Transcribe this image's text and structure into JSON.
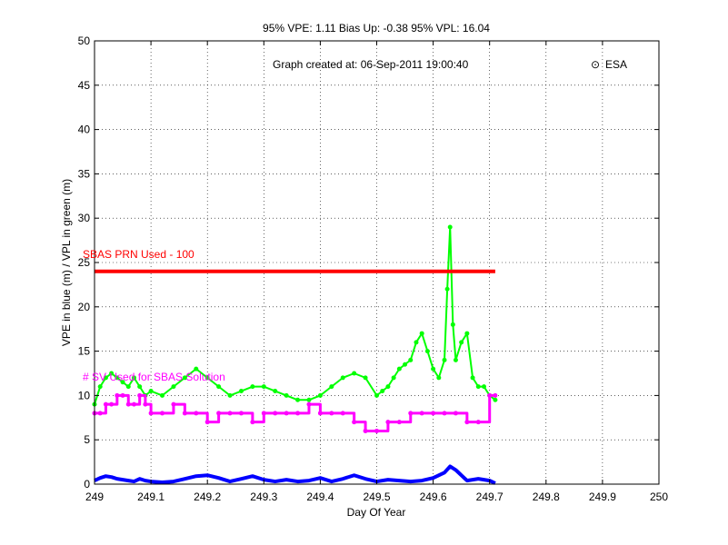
{
  "header": {
    "title": "95% VPE: 1.11  Bias Up: -0.38  95% VPL: 16.04",
    "created": "Graph created at: 06-Sep-2011 19:00:40",
    "credit": "ESA",
    "credit_symbol": "⊙"
  },
  "chart_data": {
    "type": "line",
    "xlabel": "Day Of Year",
    "ylabel": "VPE in blue (m) / VPL in green (m)",
    "xlim": [
      249,
      250
    ],
    "ylim": [
      0,
      50
    ],
    "grid": true,
    "xticks": [
      249,
      249.1,
      249.2,
      249.3,
      249.4,
      249.5,
      249.6,
      249.7,
      249.8,
      249.9,
      250
    ],
    "xtick_labels": [
      "249",
      "249.1",
      "249.2",
      "249.3",
      "249.4",
      "249.5",
      "249.6",
      "249.7",
      "249.8",
      "249.9",
      "250"
    ],
    "yticks": [
      0,
      5,
      10,
      15,
      20,
      25,
      30,
      35,
      40,
      45,
      50
    ],
    "ytick_labels": [
      "0",
      "5",
      "10",
      "15",
      "20",
      "25",
      "30",
      "35",
      "40",
      "45",
      "50"
    ],
    "annotations": [
      {
        "text": "SBAS PRN Used - 100",
        "x": 249.0,
        "y": 25.5,
        "color": "#ff0000"
      },
      {
        "text": "# SV Used for SBAS Solution",
        "x": 249.0,
        "y": 11.7,
        "color": "#ff00ff"
      }
    ],
    "series": [
      {
        "color": "#ff0000",
        "style": "thick-line",
        "x": [
          249.0,
          249.71
        ],
        "y": [
          24,
          24
        ]
      },
      {
        "color": "#00ff00",
        "style": "line-dots",
        "x": [
          249.0,
          249.01,
          249.02,
          249.03,
          249.04,
          249.05,
          249.06,
          249.07,
          249.08,
          249.09,
          249.1,
          249.12,
          249.14,
          249.16,
          249.18,
          249.2,
          249.22,
          249.24,
          249.26,
          249.28,
          249.3,
          249.32,
          249.34,
          249.36,
          249.38,
          249.4,
          249.42,
          249.44,
          249.46,
          249.48,
          249.5,
          249.51,
          249.52,
          249.53,
          249.54,
          249.55,
          249.56,
          249.57,
          249.58,
          249.59,
          249.6,
          249.61,
          249.62,
          249.625,
          249.63,
          249.635,
          249.64,
          249.65,
          249.66,
          249.67,
          249.68,
          249.69,
          249.7,
          249.71
        ],
        "y": [
          9,
          11,
          12,
          12.5,
          12,
          11.5,
          11,
          12,
          11,
          10,
          10.5,
          10,
          11,
          12,
          13,
          12,
          11,
          10,
          10.5,
          11,
          11,
          10.5,
          10,
          9.5,
          9.5,
          10,
          11,
          12,
          12.5,
          12,
          10,
          10.5,
          11,
          12,
          13,
          13.5,
          14,
          16,
          17,
          15,
          13,
          12,
          14,
          22,
          29,
          18,
          14,
          16,
          17,
          12,
          11,
          11,
          10,
          9.5
        ]
      },
      {
        "color": "#ff00ff",
        "style": "step-dots",
        "x": [
          249.0,
          249.01,
          249.02,
          249.03,
          249.04,
          249.05,
          249.06,
          249.07,
          249.08,
          249.09,
          249.1,
          249.12,
          249.14,
          249.16,
          249.18,
          249.2,
          249.22,
          249.24,
          249.26,
          249.28,
          249.3,
          249.32,
          249.34,
          249.36,
          249.38,
          249.4,
          249.42,
          249.44,
          249.46,
          249.48,
          249.5,
          249.52,
          249.54,
          249.56,
          249.58,
          249.6,
          249.62,
          249.64,
          249.66,
          249.68,
          249.7,
          249.71
        ],
        "y": [
          8,
          8,
          9,
          9,
          10,
          10,
          9,
          9,
          10,
          9,
          8,
          8,
          9,
          8,
          8,
          7,
          8,
          8,
          8,
          7,
          8,
          8,
          8,
          8,
          9,
          8,
          8,
          8,
          7,
          6,
          6,
          7,
          7,
          8,
          8,
          8,
          8,
          8,
          7,
          7,
          10,
          10
        ]
      },
      {
        "color": "#0000ff",
        "style": "thick-line",
        "x": [
          249.0,
          249.01,
          249.02,
          249.03,
          249.04,
          249.05,
          249.06,
          249.07,
          249.08,
          249.09,
          249.1,
          249.12,
          249.14,
          249.16,
          249.18,
          249.2,
          249.22,
          249.24,
          249.26,
          249.28,
          249.3,
          249.32,
          249.34,
          249.36,
          249.38,
          249.4,
          249.42,
          249.44,
          249.46,
          249.48,
          249.5,
          249.52,
          249.54,
          249.56,
          249.58,
          249.6,
          249.62,
          249.63,
          249.64,
          249.66,
          249.68,
          249.7,
          249.71
        ],
        "y": [
          0.4,
          0.7,
          0.9,
          0.8,
          0.6,
          0.5,
          0.4,
          0.3,
          0.6,
          0.4,
          0.3,
          0.2,
          0.3,
          0.6,
          0.9,
          1.0,
          0.7,
          0.3,
          0.6,
          0.9,
          0.5,
          0.3,
          0.5,
          0.3,
          0.4,
          0.7,
          0.3,
          0.6,
          1.0,
          0.6,
          0.3,
          0.5,
          0.4,
          0.3,
          0.4,
          0.7,
          1.3,
          2.0,
          1.6,
          0.4,
          0.6,
          0.4,
          0.1
        ]
      }
    ]
  }
}
